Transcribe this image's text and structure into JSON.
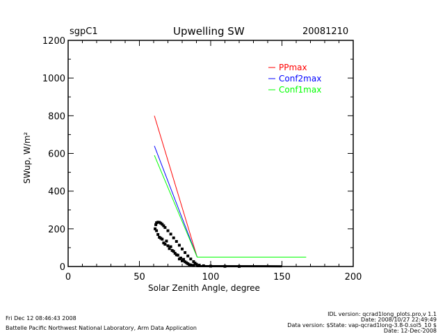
{
  "header": {
    "site": "sgpC1",
    "title": "Upwelling SW",
    "date": "20081210"
  },
  "footer": {
    "left": [
      "Fri Dec 12 08:46:43 2008",
      "Battelle Pacific Northwest National Laboratory, Arm Data Application"
    ],
    "right": [
      "IDL version: qcrad1long_plots.pro,v 1.1",
      "Date: 2008/10/27 22:49:49",
      "Data version: $State: vap-qcrad1long-3.8-0.sol5_10 $",
      "Date: 12-Dec-2008"
    ]
  },
  "colors": {
    "PPmax": "#ff0000",
    "Conf2max": "#0000ff",
    "Conf1max": "#00ff00",
    "data": "#000000"
  },
  "chart_data": {
    "type": "line",
    "title": "Upwelling SW",
    "xlabel": "Solar Zenith Angle, degree",
    "ylabel": "SWup, W/m²",
    "xlim": [
      0,
      200
    ],
    "ylim": [
      0,
      1200
    ],
    "xticks": [
      "0",
      "50",
      "100",
      "150",
      "200"
    ],
    "yticks": [
      "0",
      "200",
      "400",
      "600",
      "800",
      "1000",
      "1200"
    ],
    "legend_position": "top-right",
    "series": [
      {
        "name": "PPmax",
        "color": "#ff0000",
        "x": [
          60.5,
          90.5
        ],
        "y": [
          800,
          50
        ]
      },
      {
        "name": "Conf2max",
        "color": "#0000ff",
        "x": [
          60.5,
          90.5
        ],
        "y": [
          640,
          50
        ]
      },
      {
        "name": "Conf1max",
        "color": "#00ff00",
        "x": [
          60.5,
          90.5,
          167
        ],
        "y": [
          590,
          50,
          50
        ]
      }
    ],
    "observations": {
      "color": "#000000",
      "points": [
        [
          61,
          200
        ],
        [
          61.5,
          222
        ],
        [
          62,
          232
        ],
        [
          63,
          235
        ],
        [
          64,
          234
        ],
        [
          65,
          230
        ],
        [
          66,
          224
        ],
        [
          67,
          216
        ],
        [
          68,
          207
        ],
        [
          70,
          190
        ],
        [
          72,
          172
        ],
        [
          74,
          152
        ],
        [
          76,
          133
        ],
        [
          78,
          113
        ],
        [
          80,
          93
        ],
        [
          82,
          74
        ],
        [
          84,
          56
        ],
        [
          86,
          40
        ],
        [
          88,
          26
        ],
        [
          89,
          18
        ],
        [
          90,
          12
        ],
        [
          92,
          7
        ],
        [
          95,
          4
        ],
        [
          100,
          2
        ],
        [
          110,
          1
        ],
        [
          120,
          0.5
        ],
        [
          62,
          190
        ],
        [
          63,
          170
        ],
        [
          64,
          155
        ],
        [
          65,
          150
        ],
        [
          66,
          145
        ],
        [
          67,
          125
        ],
        [
          68,
          118
        ],
        [
          69,
          135
        ],
        [
          70,
          110
        ],
        [
          71,
          95
        ],
        [
          72,
          105
        ],
        [
          73,
          85
        ],
        [
          74,
          80
        ],
        [
          75,
          70
        ],
        [
          76,
          62
        ],
        [
          77,
          60
        ],
        [
          78,
          40
        ],
        [
          79,
          45
        ],
        [
          80,
          30
        ],
        [
          81,
          38
        ],
        [
          82,
          25
        ],
        [
          83,
          20
        ],
        [
          84,
          15
        ],
        [
          85,
          10
        ],
        [
          86,
          8
        ],
        [
          87,
          6
        ],
        [
          88,
          5
        ]
      ]
    }
  }
}
